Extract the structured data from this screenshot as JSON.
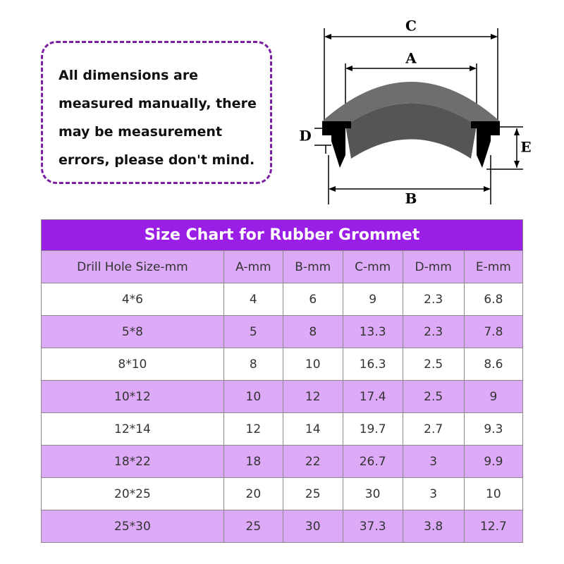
{
  "note": {
    "lines": [
      "All dimensions are",
      "measured manually, there",
      "may be measurement",
      "errors, please don't mind."
    ]
  },
  "diagram": {
    "labels": [
      "C",
      "A",
      "D",
      "E",
      "B"
    ]
  },
  "table": {
    "title": "Size Chart for Rubber Grommet",
    "header": [
      "Drill Hole Size-mm",
      "A-mm",
      "B-mm",
      "C-mm",
      "D-mm",
      "E-mm"
    ],
    "rows": [
      [
        "4*6",
        "4",
        "6",
        "9",
        "2.3",
        "6.8"
      ],
      [
        "5*8",
        "5",
        "8",
        "13.3",
        "2.3",
        "7.8"
      ],
      [
        "8*10",
        "8",
        "10",
        "16.3",
        "2.5",
        "8.6"
      ],
      [
        "10*12",
        "10",
        "12",
        "17.4",
        "2.5",
        "9"
      ],
      [
        "12*14",
        "12",
        "14",
        "19.7",
        "2.7",
        "9.3"
      ],
      [
        "18*22",
        "18",
        "22",
        "26.7",
        "3",
        "9.9"
      ],
      [
        "20*25",
        "20",
        "25",
        "30",
        "3",
        "10"
      ],
      [
        "25*30",
        "25",
        "30",
        "37.3",
        "3.8",
        "12.7"
      ]
    ]
  }
}
